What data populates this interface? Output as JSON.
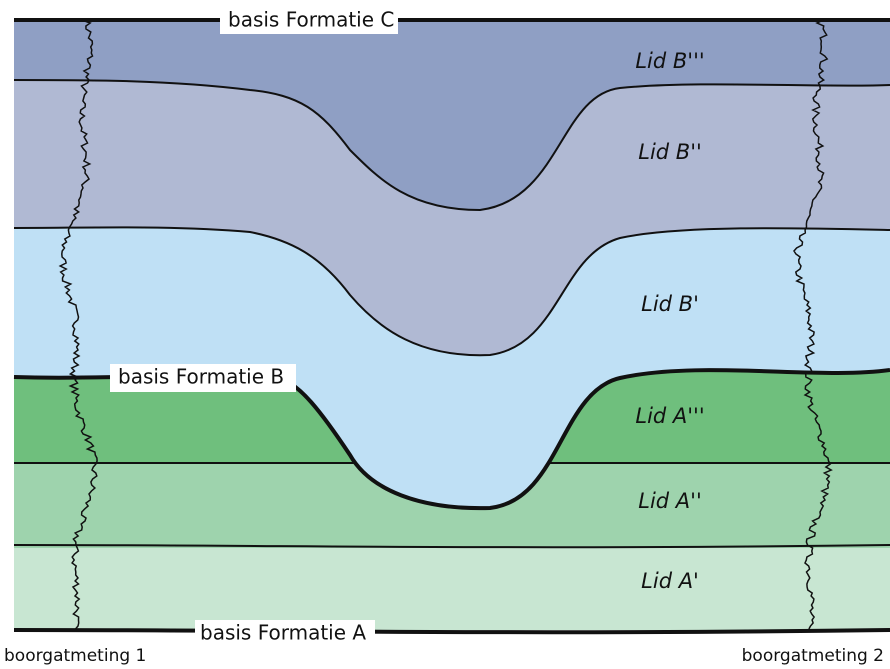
{
  "labels": {
    "top_boundary": "basis Formatie C",
    "middle_boundary": "basis Formatie B",
    "bottom_boundary": "basis Formatie A",
    "borehole_left": "boorgatmeting 1",
    "borehole_right": "boorgatmeting 2"
  },
  "layers": [
    "Lid B'''",
    "Lid B''",
    "Lid B'",
    "Lid A'''",
    "Lid A''",
    "Lid A'"
  ]
}
